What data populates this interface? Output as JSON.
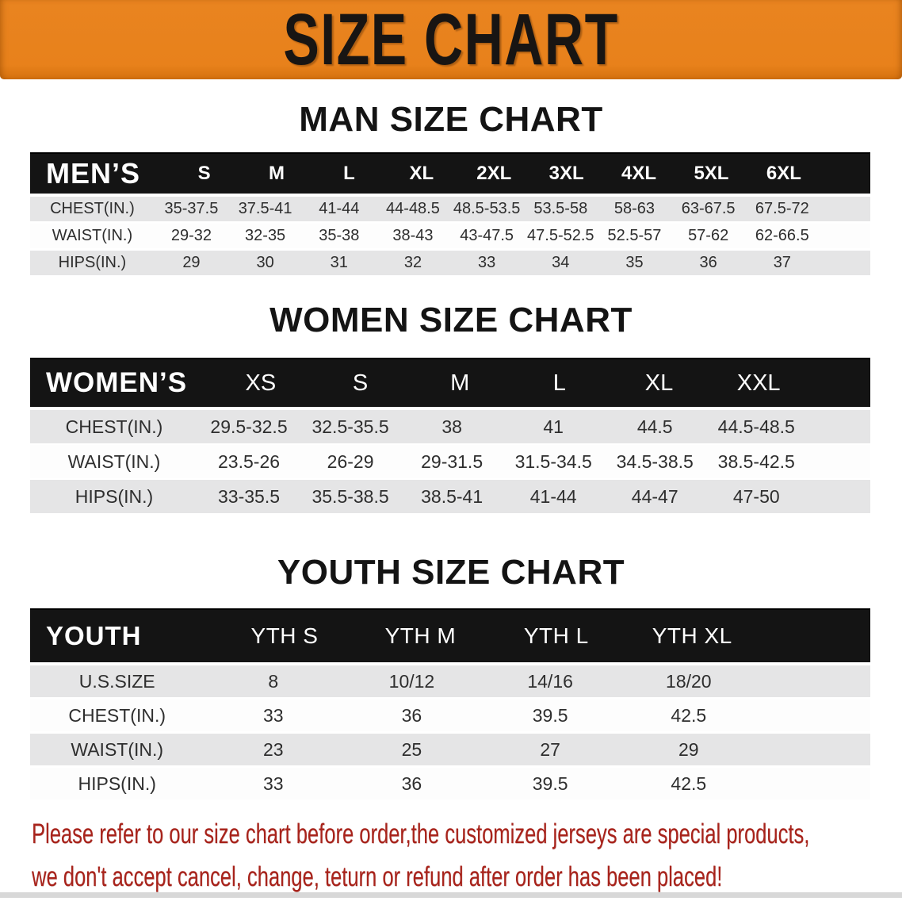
{
  "banner": {
    "title": "SIZE CHART",
    "bg_color": "#e8811b",
    "text_color": "#181513"
  },
  "colors": {
    "table_header_bg": "#141414",
    "row_gray": "#e5e5e6",
    "row_white": "#fdfdfd",
    "footer_red": "#a8231b"
  },
  "sections": [
    {
      "heading": "MAN SIZE CHART",
      "table": {
        "label": "MEN’S",
        "columns": [
          "S",
          "M",
          "L",
          "XL",
          "2XL",
          "3XL",
          "4XL",
          "5XL",
          "6XL"
        ],
        "rows": [
          {
            "label": "CHEST(IN.)",
            "values": [
              "35-37.5",
              "37.5-41",
              "41-44",
              "44-48.5",
              "48.5-53.5",
              "53.5-58",
              "58-63",
              "63-67.5",
              "67.5-72"
            ]
          },
          {
            "label": "WAIST(IN.)",
            "values": [
              "29-32",
              "32-35",
              "35-38",
              "38-43",
              "43-47.5",
              "47.5-52.5",
              "52.5-57",
              "57-62",
              "62-66.5"
            ]
          },
          {
            "label": "HIPS(IN.)",
            "values": [
              "29",
              "30",
              "31",
              "32",
              "33",
              "34",
              "35",
              "36",
              "37"
            ]
          }
        ]
      }
    },
    {
      "heading": "WOMEN SIZE CHART",
      "table": {
        "label": "WOMEN’S",
        "columns": [
          "XS",
          "S",
          "M",
          "L",
          "XL",
          "XXL"
        ],
        "rows": [
          {
            "label": "CHEST(IN.)",
            "values": [
              "29.5-32.5",
              "32.5-35.5",
              "38",
              "41",
              "44.5",
              "44.5-48.5"
            ]
          },
          {
            "label": "WAIST(IN.)",
            "values": [
              "23.5-26",
              "26-29",
              "29-31.5",
              "31.5-34.5",
              "34.5-38.5",
              "38.5-42.5"
            ]
          },
          {
            "label": "HIPS(IN.)",
            "values": [
              "33-35.5",
              "35.5-38.5",
              "38.5-41",
              "41-44",
              "44-47",
              "47-50"
            ]
          }
        ]
      }
    },
    {
      "heading": "YOUTH SIZE CHART",
      "table": {
        "label": "YOUTH",
        "columns": [
          "YTH S",
          "YTH M",
          "YTH L",
          "YTH XL"
        ],
        "rows": [
          {
            "label": "U.S.SIZE",
            "values": [
              "8",
              "10/12",
              "14/16",
              "18/20"
            ]
          },
          {
            "label": "CHEST(IN.)",
            "values": [
              "33",
              "36",
              "39.5",
              "42.5"
            ]
          },
          {
            "label": "WAIST(IN.)",
            "values": [
              "23",
              "25",
              "27",
              "29"
            ]
          },
          {
            "label": "HIPS(IN.)",
            "values": [
              "33",
              "36",
              "39.5",
              "42.5"
            ]
          }
        ]
      }
    }
  ],
  "footer": {
    "line1": "Please refer to our size chart before order,the customized jerseys are special products,",
    "line2": "we don't accept cancel, change, teturn or refund after order has been placed!"
  }
}
